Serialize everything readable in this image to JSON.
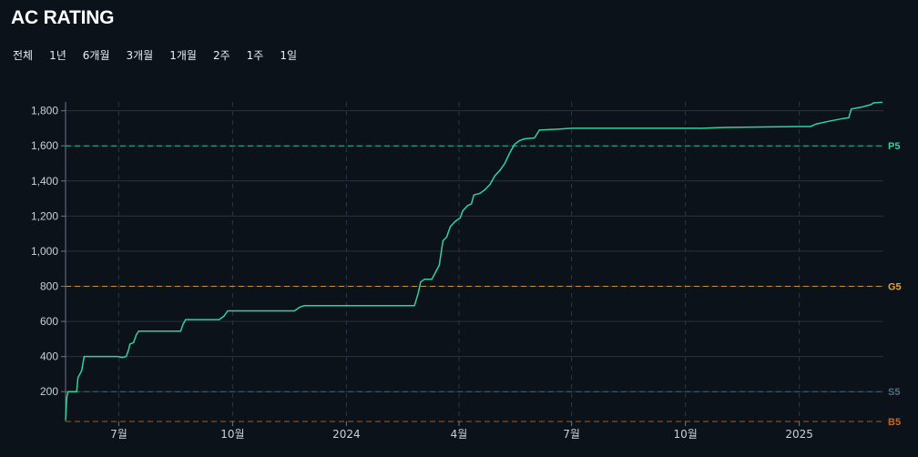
{
  "header": {
    "title": "AC RATING"
  },
  "range_tabs": [
    {
      "label": "전체"
    },
    {
      "label": "1년"
    },
    {
      "label": "6개월"
    },
    {
      "label": "3개월"
    },
    {
      "label": "1개월"
    },
    {
      "label": "2주"
    },
    {
      "label": "1주"
    },
    {
      "label": "1일"
    }
  ],
  "chart_data": {
    "type": "line",
    "title": "AC RATING",
    "xlabel": "",
    "ylabel": "",
    "x_range": [
      "2023-05-19",
      "2025-03-10"
    ],
    "ylim": [
      30,
      1850
    ],
    "x_ticks": [
      {
        "date": "2023-07-01",
        "label": "7월"
      },
      {
        "date": "2023-10-01",
        "label": "10월"
      },
      {
        "date": "2024-01-01",
        "label": "2024"
      },
      {
        "date": "2024-04-01",
        "label": "4월"
      },
      {
        "date": "2024-07-01",
        "label": "7월"
      },
      {
        "date": "2024-10-01",
        "label": "10월"
      },
      {
        "date": "2025-01-01",
        "label": "2025"
      }
    ],
    "y_ticks": [
      {
        "value": 200,
        "label": "200"
      },
      {
        "value": 400,
        "label": "400"
      },
      {
        "value": 600,
        "label": "600"
      },
      {
        "value": 800,
        "label": "800"
      },
      {
        "value": 1000,
        "label": "1,000"
      },
      {
        "value": 1200,
        "label": "1,200"
      },
      {
        "value": 1400,
        "label": "1,400"
      },
      {
        "value": 1600,
        "label": "1,600"
      },
      {
        "value": 1800,
        "label": "1,800"
      }
    ],
    "grid": true,
    "line_color": "#2fd39d",
    "tiers": [
      {
        "label": "P5",
        "value": 1600,
        "color": "#2fd39d"
      },
      {
        "label": "G5",
        "value": 800,
        "color": "#e8a23a"
      },
      {
        "label": "S5",
        "value": 200,
        "color": "#4e6e83"
      },
      {
        "label": "B5",
        "value": 30,
        "color": "#c2692a"
      }
    ],
    "series": [
      {
        "points": [
          [
            "2023-05-19",
            40
          ],
          [
            "2023-05-20",
            170
          ],
          [
            "2023-05-21",
            200
          ],
          [
            "2023-05-28",
            200
          ],
          [
            "2023-05-29",
            280
          ],
          [
            "2023-06-01",
            320
          ],
          [
            "2023-06-03",
            400
          ],
          [
            "2023-06-30",
            400
          ],
          [
            "2023-07-04",
            395
          ],
          [
            "2023-07-07",
            400
          ],
          [
            "2023-07-09",
            440
          ],
          [
            "2023-07-10",
            470
          ],
          [
            "2023-07-13",
            480
          ],
          [
            "2023-07-15",
            520
          ],
          [
            "2023-07-17",
            545
          ],
          [
            "2023-08-01",
            545
          ],
          [
            "2023-08-20",
            545
          ],
          [
            "2023-08-22",
            585
          ],
          [
            "2023-08-24",
            610
          ],
          [
            "2023-09-20",
            610
          ],
          [
            "2023-09-24",
            630
          ],
          [
            "2023-09-27",
            660
          ],
          [
            "2023-11-20",
            660
          ],
          [
            "2023-11-24",
            680
          ],
          [
            "2023-11-28",
            690
          ],
          [
            "2024-02-25",
            690
          ],
          [
            "2024-02-28",
            760
          ],
          [
            "2024-03-01",
            825
          ],
          [
            "2024-03-04",
            840
          ],
          [
            "2024-03-10",
            840
          ],
          [
            "2024-03-13",
            880
          ],
          [
            "2024-03-16",
            920
          ],
          [
            "2024-03-19",
            1060
          ],
          [
            "2024-03-22",
            1080
          ],
          [
            "2024-03-25",
            1140
          ],
          [
            "2024-03-29",
            1170
          ],
          [
            "2024-04-02",
            1190
          ],
          [
            "2024-04-04",
            1230
          ],
          [
            "2024-04-08",
            1260
          ],
          [
            "2024-04-11",
            1270
          ],
          [
            "2024-04-13",
            1320
          ],
          [
            "2024-04-18",
            1330
          ],
          [
            "2024-04-22",
            1350
          ],
          [
            "2024-04-26",
            1380
          ],
          [
            "2024-04-30",
            1430
          ],
          [
            "2024-05-04",
            1460
          ],
          [
            "2024-05-08",
            1500
          ],
          [
            "2024-05-12",
            1560
          ],
          [
            "2024-05-16",
            1610
          ],
          [
            "2024-05-20",
            1630
          ],
          [
            "2024-05-24",
            1640
          ],
          [
            "2024-06-01",
            1645
          ],
          [
            "2024-06-05",
            1690
          ],
          [
            "2024-06-20",
            1695
          ],
          [
            "2024-07-01",
            1700
          ],
          [
            "2024-10-15",
            1700
          ],
          [
            "2024-11-01",
            1705
          ],
          [
            "2024-12-31",
            1710
          ],
          [
            "2025-01-10",
            1710
          ],
          [
            "2025-01-15",
            1725
          ],
          [
            "2025-01-25",
            1740
          ],
          [
            "2025-02-05",
            1755
          ],
          [
            "2025-02-10",
            1760
          ],
          [
            "2025-02-12",
            1810
          ],
          [
            "2025-02-20",
            1820
          ],
          [
            "2025-02-28",
            1835
          ],
          [
            "2025-03-02",
            1845
          ],
          [
            "2025-03-09",
            1848
          ]
        ]
      }
    ]
  }
}
